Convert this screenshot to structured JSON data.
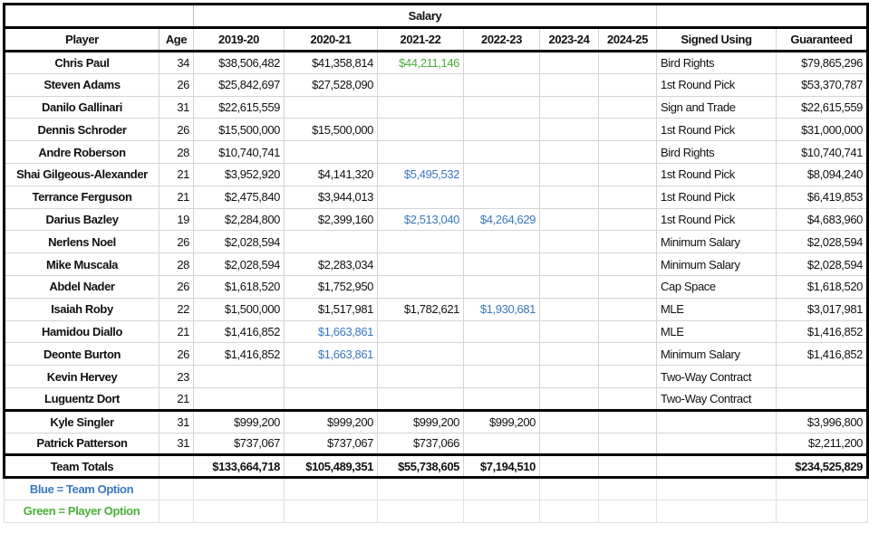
{
  "header": {
    "salary_label": "Salary",
    "columns": [
      "Player",
      "Age",
      "2019-20",
      "2020-21",
      "2021-22",
      "2022-23",
      "2023-24",
      "2024-25",
      "Signed Using",
      "Guaranteed"
    ]
  },
  "colors": {
    "team_option": "#3a78c0",
    "player_option": "#4caf3a"
  },
  "players": [
    {
      "name": "Chris Paul",
      "age": "34",
      "s": [
        "$38,506,482",
        "$41,358,814",
        "$44,211,146",
        "",
        "",
        ""
      ],
      "opt": [
        "",
        "",
        "player",
        "",
        "",
        ""
      ],
      "signed": "Bird Rights",
      "guaranteed": "$79,865,296"
    },
    {
      "name": "Steven Adams",
      "age": "26",
      "s": [
        "$25,842,697",
        "$27,528,090",
        "",
        "",
        "",
        ""
      ],
      "opt": [
        "",
        "",
        "",
        "",
        "",
        ""
      ],
      "signed": "1st Round Pick",
      "guaranteed": "$53,370,787"
    },
    {
      "name": "Danilo Gallinari",
      "age": "31",
      "s": [
        "$22,615,559",
        "",
        "",
        "",
        "",
        ""
      ],
      "opt": [
        "",
        "",
        "",
        "",
        "",
        ""
      ],
      "signed": "Sign and Trade",
      "guaranteed": "$22,615,559"
    },
    {
      "name": "Dennis Schroder",
      "age": "26",
      "s": [
        "$15,500,000",
        "$15,500,000",
        "",
        "",
        "",
        ""
      ],
      "opt": [
        "",
        "",
        "",
        "",
        "",
        ""
      ],
      "signed": "1st Round Pick",
      "guaranteed": "$31,000,000"
    },
    {
      "name": "Andre Roberson",
      "age": "28",
      "s": [
        "$10,740,741",
        "",
        "",
        "",
        "",
        ""
      ],
      "opt": [
        "",
        "",
        "",
        "",
        "",
        ""
      ],
      "signed": "Bird Rights",
      "guaranteed": "$10,740,741"
    },
    {
      "name": "Shai Gilgeous-Alexander",
      "age": "21",
      "s": [
        "$3,952,920",
        "$4,141,320",
        "$5,495,532",
        "",
        "",
        ""
      ],
      "opt": [
        "",
        "",
        "team",
        "",
        "",
        ""
      ],
      "signed": "1st Round Pick",
      "guaranteed": "$8,094,240"
    },
    {
      "name": "Terrance Ferguson",
      "age": "21",
      "s": [
        "$2,475,840",
        "$3,944,013",
        "",
        "",
        "",
        ""
      ],
      "opt": [
        "",
        "",
        "",
        "",
        "",
        ""
      ],
      "signed": "1st Round Pick",
      "guaranteed": "$6,419,853"
    },
    {
      "name": "Darius Bazley",
      "age": "19",
      "s": [
        "$2,284,800",
        "$2,399,160",
        "$2,513,040",
        "$4,264,629",
        "",
        ""
      ],
      "opt": [
        "",
        "",
        "team",
        "team",
        "",
        ""
      ],
      "signed": "1st Round Pick",
      "guaranteed": "$4,683,960"
    },
    {
      "name": "Nerlens Noel",
      "age": "26",
      "s": [
        "$2,028,594",
        "",
        "",
        "",
        "",
        ""
      ],
      "opt": [
        "",
        "",
        "",
        "",
        "",
        ""
      ],
      "signed": "Minimum Salary",
      "guaranteed": "$2,028,594"
    },
    {
      "name": "Mike Muscala",
      "age": "28",
      "s": [
        "$2,028,594",
        "$2,283,034",
        "",
        "",
        "",
        ""
      ],
      "opt": [
        "",
        "",
        "",
        "",
        "",
        ""
      ],
      "signed": "Minimum Salary",
      "guaranteed": "$2,028,594"
    },
    {
      "name": "Abdel Nader",
      "age": "26",
      "s": [
        "$1,618,520",
        "$1,752,950",
        "",
        "",
        "",
        ""
      ],
      "opt": [
        "",
        "",
        "",
        "",
        "",
        ""
      ],
      "signed": "Cap Space",
      "guaranteed": "$1,618,520"
    },
    {
      "name": "Isaiah Roby",
      "age": "22",
      "s": [
        "$1,500,000",
        "$1,517,981",
        "$1,782,621",
        "$1,930,681",
        "",
        ""
      ],
      "opt": [
        "",
        "",
        "",
        "team",
        "",
        ""
      ],
      "signed": "MLE",
      "guaranteed": "$3,017,981"
    },
    {
      "name": "Hamidou Diallo",
      "age": "21",
      "s": [
        "$1,416,852",
        "$1,663,861",
        "",
        "",
        "",
        ""
      ],
      "opt": [
        "",
        "team",
        "",
        "",
        "",
        ""
      ],
      "signed": "MLE",
      "guaranteed": "$1,416,852"
    },
    {
      "name": "Deonte Burton",
      "age": "26",
      "s": [
        "$1,416,852",
        "$1,663,861",
        "",
        "",
        "",
        ""
      ],
      "opt": [
        "",
        "team",
        "",
        "",
        "",
        ""
      ],
      "signed": "Minimum Salary",
      "guaranteed": "$1,416,852"
    },
    {
      "name": "Kevin Hervey",
      "age": "23",
      "s": [
        "",
        "",
        "",
        "",
        "",
        ""
      ],
      "opt": [
        "",
        "",
        "",
        "",
        "",
        ""
      ],
      "signed": "Two-Way Contract",
      "guaranteed": ""
    },
    {
      "name": "Luguentz Dort",
      "age": "21",
      "s": [
        "",
        "",
        "",
        "",
        "",
        ""
      ],
      "opt": [
        "",
        "",
        "",
        "",
        "",
        ""
      ],
      "signed": "Two-Way Contract",
      "guaranteed": ""
    }
  ],
  "dead_money": [
    {
      "name": "Kyle Singler",
      "age": "31",
      "s": [
        "$999,200",
        "$999,200",
        "$999,200",
        "$999,200",
        "",
        ""
      ],
      "signed": "",
      "guaranteed": "$3,996,800"
    },
    {
      "name": "Patrick Patterson",
      "age": "31",
      "s": [
        "$737,067",
        "$737,067",
        "$737,066",
        "",
        "",
        ""
      ],
      "signed": "",
      "guaranteed": "$2,211,200"
    }
  ],
  "totals": {
    "label": "Team Totals",
    "s": [
      "$133,664,718",
      "$105,489,351",
      "$55,738,605",
      "$7,194,510",
      "",
      ""
    ],
    "guaranteed": "$234,525,829"
  },
  "legend": {
    "blue": "Blue = Team Option",
    "green": "Green = Player Option"
  }
}
